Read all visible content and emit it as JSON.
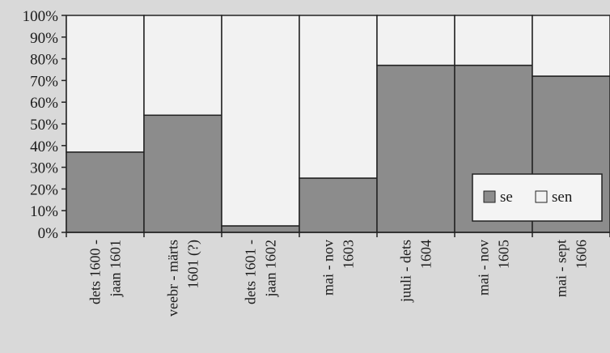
{
  "chart_data": {
    "type": "bar",
    "stacked": true,
    "percent": true,
    "categories": [
      [
        "dets 1600 -",
        "jaan 1601"
      ],
      [
        "veebr - märts",
        "1601 (?)"
      ],
      [
        "dets 1601 -",
        "jaan 1602"
      ],
      [
        "mai - nov",
        "1603"
      ],
      [
        "juuli - dets",
        "1604"
      ],
      [
        "mai - nov",
        "1605"
      ],
      [
        "mai - sept",
        "1606"
      ]
    ],
    "series": [
      {
        "name": "se",
        "values": [
          37,
          54,
          3,
          25,
          77,
          77,
          72
        ],
        "color": "#8c8c8c"
      },
      {
        "name": "sen",
        "values": [
          63,
          46,
          97,
          75,
          23,
          23,
          28
        ],
        "color": "#f2f2f2"
      }
    ],
    "yticks": [
      "0%",
      "10%",
      "20%",
      "30%",
      "40%",
      "50%",
      "60%",
      "70%",
      "80%",
      "90%",
      "100%"
    ],
    "ylim": [
      0,
      100
    ],
    "legend_position": "bottom-right-inside",
    "grid": false
  }
}
